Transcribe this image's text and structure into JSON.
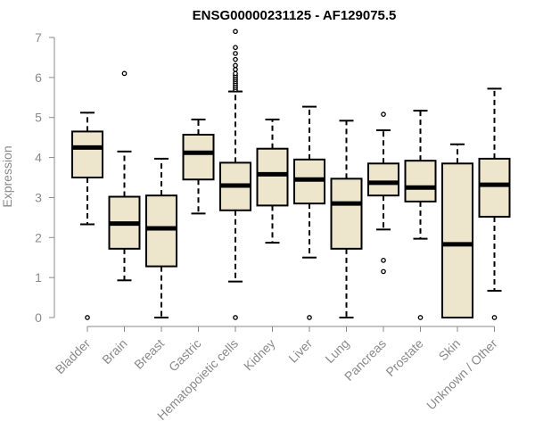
{
  "chart_data": {
    "type": "boxplot",
    "title": "ENSG00000231125 - AF129075.5",
    "xlabel": "",
    "ylabel": "Expression",
    "ylim": [
      0,
      7
    ],
    "yticks": [
      0,
      1,
      2,
      3,
      4,
      5,
      6,
      7
    ],
    "grid": false,
    "box_color": "#ede6cd",
    "axis_color": "#8a8a8a",
    "categories": [
      "Bladder",
      "Brain",
      "Breast",
      "Gastric",
      "Hematopoietic cells",
      "Kidney",
      "Liver",
      "Lung",
      "Pancreas",
      "Prostate",
      "Skin",
      "Unknown / Other"
    ],
    "boxes": [
      {
        "name": "Bladder",
        "whisker_low": 2.33,
        "q1": 3.5,
        "median": 4.25,
        "q3": 4.65,
        "whisker_high": 5.12,
        "outliers": [
          0
        ]
      },
      {
        "name": "Brain",
        "whisker_low": 0.93,
        "q1": 1.72,
        "median": 2.35,
        "q3": 3.02,
        "whisker_high": 4.15,
        "outliers": [
          6.1
        ]
      },
      {
        "name": "Breast",
        "whisker_low": 0,
        "q1": 1.28,
        "median": 2.23,
        "q3": 3.05,
        "whisker_high": 3.97,
        "outliers": []
      },
      {
        "name": "Gastric",
        "whisker_low": 2.6,
        "q1": 3.45,
        "median": 4.12,
        "q3": 4.57,
        "whisker_high": 4.95,
        "outliers": []
      },
      {
        "name": "Hematopoietic cells",
        "whisker_low": 0.9,
        "q1": 2.68,
        "median": 3.3,
        "q3": 3.87,
        "whisker_high": 5.65,
        "outliers": [
          0,
          5.7,
          5.75,
          5.8,
          5.85,
          5.9,
          5.95,
          6.0,
          6.05,
          6.1,
          6.2,
          6.3,
          6.45,
          6.6,
          6.75,
          7.15
        ]
      },
      {
        "name": "Kidney",
        "whisker_low": 1.87,
        "q1": 2.8,
        "median": 3.58,
        "q3": 4.22,
        "whisker_high": 4.95,
        "outliers": []
      },
      {
        "name": "Liver",
        "whisker_low": 1.5,
        "q1": 2.85,
        "median": 3.45,
        "q3": 3.95,
        "whisker_high": 5.27,
        "outliers": [
          0
        ]
      },
      {
        "name": "Lung",
        "whisker_low": 0,
        "q1": 1.72,
        "median": 2.85,
        "q3": 3.47,
        "whisker_high": 4.92,
        "outliers": []
      },
      {
        "name": "Pancreas",
        "whisker_low": 2.2,
        "q1": 3.05,
        "median": 3.37,
        "q3": 3.85,
        "whisker_high": 4.68,
        "outliers": [
          1.15,
          1.43,
          5.08
        ]
      },
      {
        "name": "Prostate",
        "whisker_low": 1.97,
        "q1": 2.9,
        "median": 3.25,
        "q3": 3.92,
        "whisker_high": 5.17,
        "outliers": [
          0
        ]
      },
      {
        "name": "Skin",
        "whisker_low": 0,
        "q1": 0,
        "median": 1.83,
        "q3": 3.85,
        "whisker_high": 4.33,
        "outliers": []
      },
      {
        "name": "Unknown / Other",
        "whisker_low": 0.67,
        "q1": 2.52,
        "median": 3.32,
        "q3": 3.97,
        "whisker_high": 5.72,
        "outliers": [
          0
        ]
      }
    ]
  }
}
